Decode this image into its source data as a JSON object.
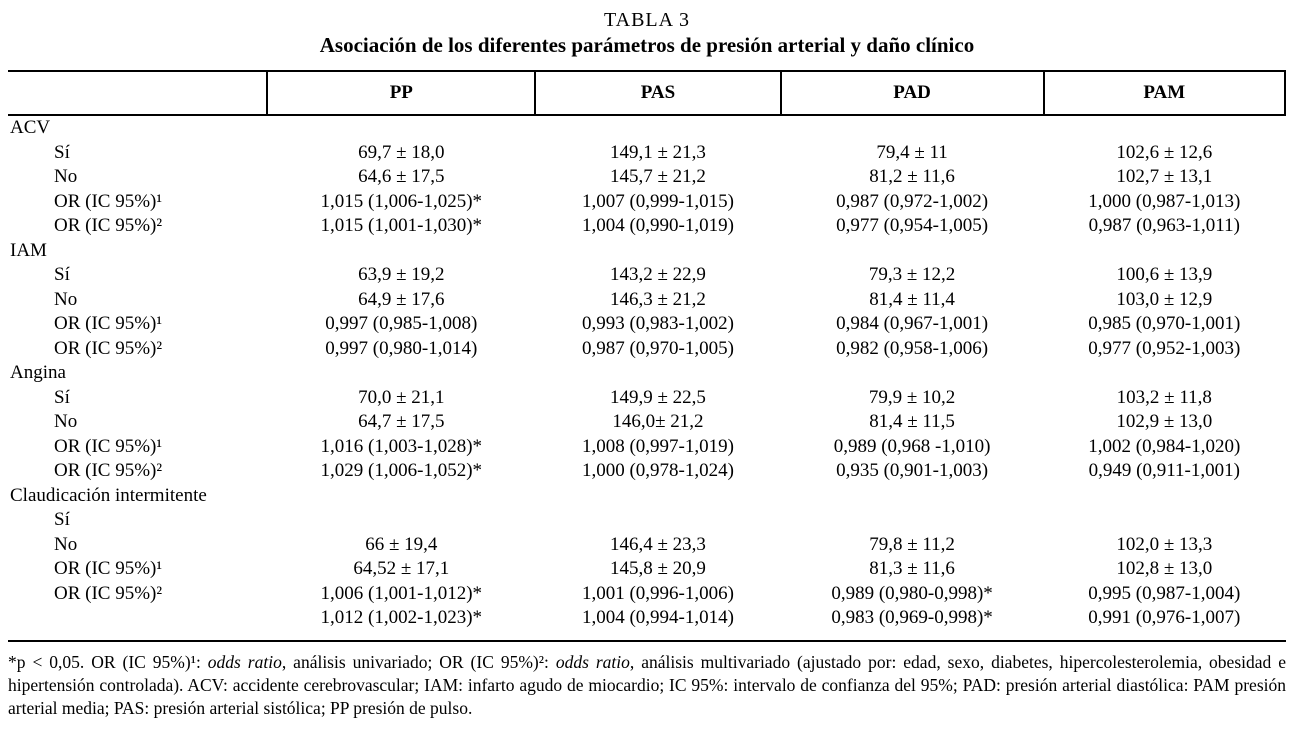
{
  "page": {
    "title": "TABLA 3",
    "subtitle": "Asociación de los diferentes parámetros de presión arterial y daño clínico"
  },
  "table": {
    "header": {
      "label": "",
      "cols": [
        "PP",
        "PAS",
        "PAD",
        "PAM"
      ]
    },
    "groups": [
      {
        "name": "ACV",
        "rows": [
          {
            "label": "Sí",
            "values": [
              "69,7 ± 18,0",
              "149,1 ± 21,3",
              "79,4 ± 11",
              "102,6 ± 12,6"
            ]
          },
          {
            "label": "No",
            "values": [
              "64,6 ± 17,5",
              "145,7 ± 21,2",
              "81,2 ± 11,6",
              "102,7 ± 13,1"
            ]
          },
          {
            "label": "OR (IC 95%)¹",
            "values": [
              "1,015 (1,006-1,025)*",
              "1,007 (0,999-1,015)",
              "0,987 (0,972-1,002)",
              "1,000 (0,987-1,013)"
            ]
          },
          {
            "label": "OR (IC 95%)²",
            "values": [
              "1,015 (1,001-1,030)*",
              "1,004 (0,990-1,019)",
              "0,977 (0,954-1,005)",
              "0,987 (0,963-1,011)"
            ]
          }
        ]
      },
      {
        "name": "IAM",
        "rows": [
          {
            "label": "Sí",
            "values": [
              "63,9 ± 19,2",
              "143,2 ± 22,9",
              "79,3 ± 12,2",
              "100,6 ± 13,9"
            ]
          },
          {
            "label": "No",
            "values": [
              "64,9 ± 17,6",
              "146,3 ± 21,2",
              "81,4 ± 11,4",
              "103,0 ± 12,9"
            ]
          },
          {
            "label": "OR (IC 95%)¹",
            "values": [
              "0,997 (0,985-1,008)",
              "0,993 (0,983-1,002)",
              "0,984 (0,967-1,001)",
              "0,985 (0,970-1,001)"
            ]
          },
          {
            "label": "OR (IC 95%)²",
            "values": [
              "0,997 (0,980-1,014)",
              "0,987 (0,970-1,005)",
              "0,982 (0,958-1,006)",
              "0,977 (0,952-1,003)"
            ]
          }
        ]
      },
      {
        "name": "Angina",
        "rows": [
          {
            "label": "Sí",
            "values": [
              "70,0 ± 21,1",
              "149,9 ± 22,5",
              "79,9 ± 10,2",
              "103,2 ± 11,8"
            ]
          },
          {
            "label": "No",
            "values": [
              "64,7 ± 17,5",
              "146,0± 21,2",
              "81,4 ± 11,5",
              "102,9 ± 13,0"
            ]
          },
          {
            "label": "OR (IC 95%)¹",
            "values": [
              "1,016 (1,003-1,028)*",
              "1,008 (0,997-1,019)",
              "0,989 (0,968 -1,010)",
              "1,002 (0,984-1,020)"
            ]
          },
          {
            "label": "OR (IC 95%)²",
            "values": [
              "1,029 (1,006-1,052)*",
              "1,000 (0,978-1,024)",
              "0,935 (0,901-1,003)",
              "0,949 (0,911-1,001)"
            ]
          }
        ]
      },
      {
        "name": "Claudicación intermitente",
        "rows": [
          {
            "label": "Sí",
            "values": [
              "",
              "",
              "",
              ""
            ]
          },
          {
            "label": "No",
            "values": [
              "66 ± 19,4",
              "146,4 ± 23,3",
              "79,8 ± 11,2",
              "102,0 ± 13,3"
            ]
          },
          {
            "label": "OR (IC 95%)¹",
            "values": [
              "64,52 ± 17,1",
              "145,8 ± 20,9",
              "81,3 ± 11,6",
              "102,8 ± 13,0"
            ]
          },
          {
            "label": "OR (IC 95%)²",
            "values": [
              "1,006 (1,001-1,012)*",
              "1,001 (0,996-1,006)",
              "0,989 (0,980-0,998)*",
              "0,995 (0,987-1,004)"
            ]
          },
          {
            "label": "",
            "values": [
              "1,012 (1,002-1,023)*",
              "1,004 (0,994-1,014)",
              "0,983 (0,969-0,998)*",
              "0,991 (0,976-1,007)"
            ]
          }
        ]
      }
    ]
  },
  "footnote": {
    "segments": [
      {
        "text": "*p < 0,05. OR (IC 95%)¹: "
      },
      {
        "text": "odds ratio",
        "italic": true
      },
      {
        "text": ", análisis univariado; OR (IC 95%)²: "
      },
      {
        "text": "odds ratio",
        "italic": true
      },
      {
        "text": ", análisis multivariado (ajustado por: edad, sexo, diabetes, hipercolesterolemia, obesidad e hipertensión controlada). ACV: accidente cerebrovascular; IAM: infarto agudo de miocardio; IC 95%: intervalo de confianza del 95%; PAD: presión arterial diastólica: PAM presión arterial media; PAS: presión arterial sistólica; PP presión de pulso."
      }
    ]
  },
  "colors": {
    "text": "#000000",
    "background": "#ffffff",
    "rule": "#000000"
  }
}
